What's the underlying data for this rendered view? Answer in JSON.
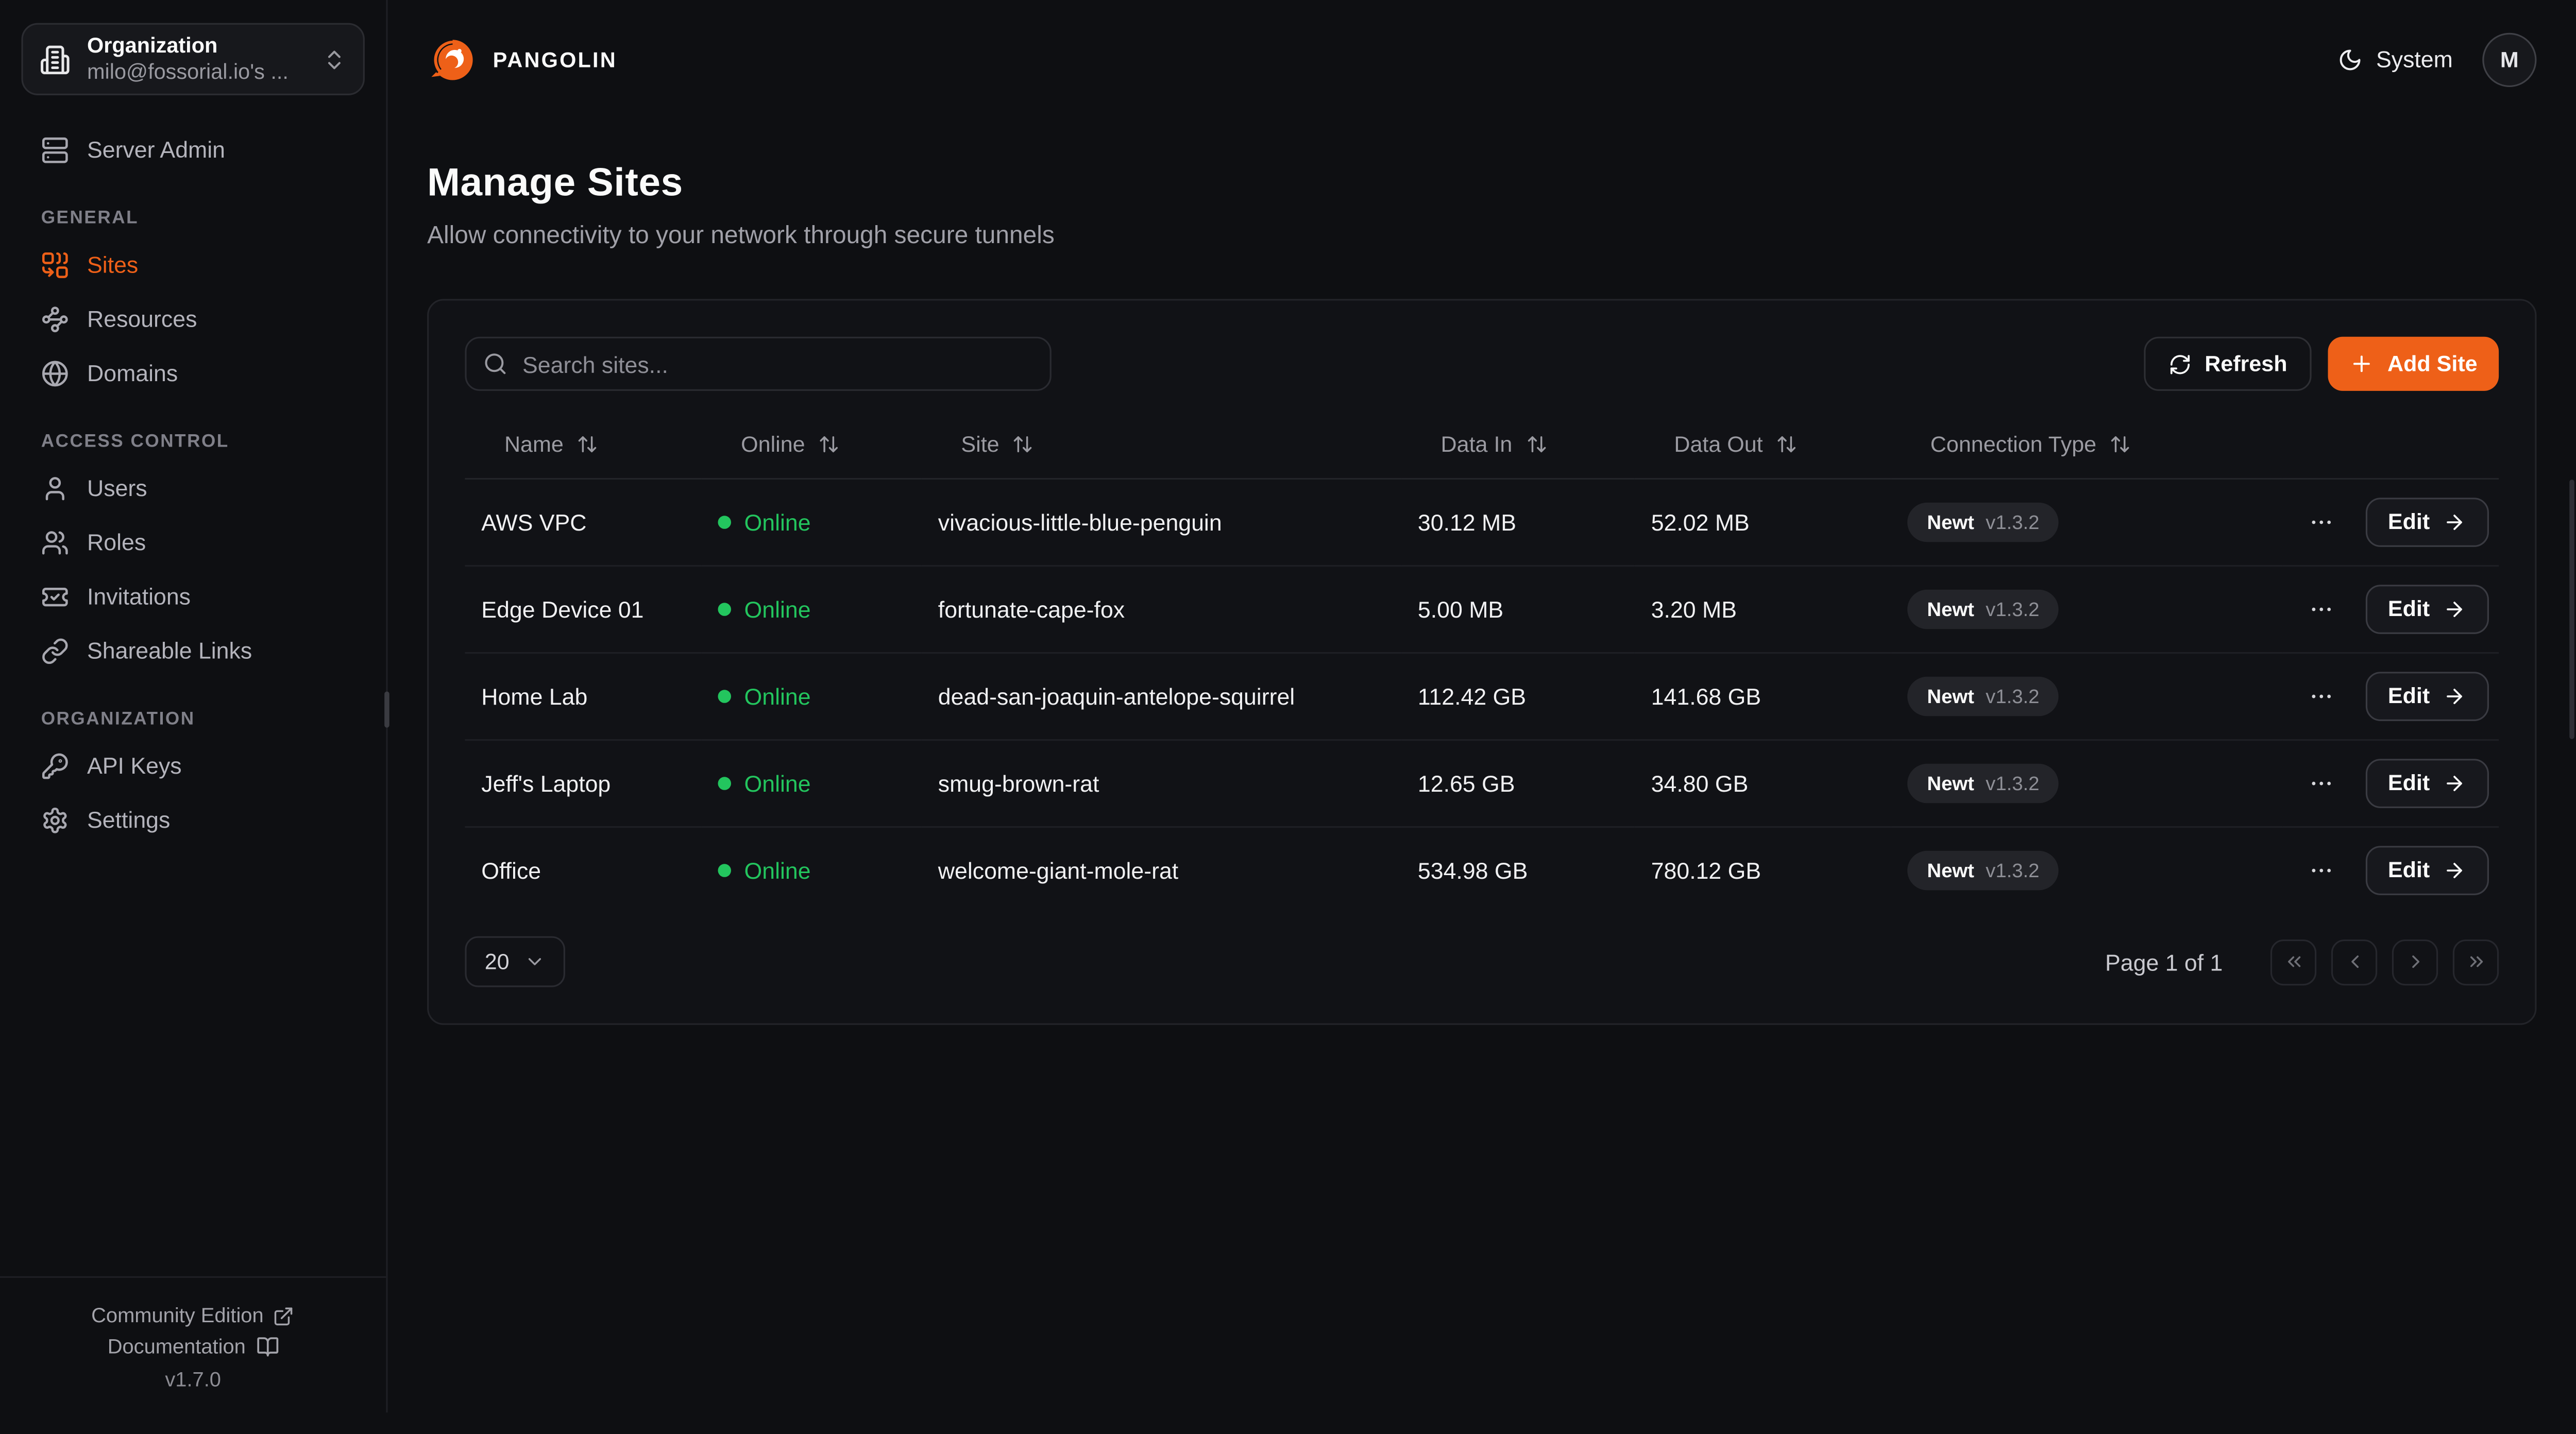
{
  "brand": {
    "name": "PANGOLIN"
  },
  "org_picker": {
    "title": "Organization",
    "value": "milo@fossorial.io's ..."
  },
  "sidebar": {
    "top_items": [
      {
        "label": "Server Admin",
        "icon": "server-icon",
        "active": false
      }
    ],
    "sections": [
      {
        "label": "GENERAL",
        "items": [
          {
            "label": "Sites",
            "icon": "combine-icon",
            "active": true
          },
          {
            "label": "Resources",
            "icon": "waypoints-icon",
            "active": false
          },
          {
            "label": "Domains",
            "icon": "globe-icon",
            "active": false
          }
        ]
      },
      {
        "label": "ACCESS CONTROL",
        "items": [
          {
            "label": "Users",
            "icon": "user-icon",
            "active": false
          },
          {
            "label": "Roles",
            "icon": "users-icon",
            "active": false
          },
          {
            "label": "Invitations",
            "icon": "ticket-check-icon",
            "active": false
          },
          {
            "label": "Shareable Links",
            "icon": "link-icon",
            "active": false
          }
        ]
      },
      {
        "label": "ORGANIZATION",
        "items": [
          {
            "label": "API Keys",
            "icon": "key-icon",
            "active": false
          },
          {
            "label": "Settings",
            "icon": "gear-icon",
            "active": false
          }
        ]
      }
    ],
    "footer": {
      "community_label": "Community Edition",
      "docs_label": "Documentation",
      "version": "v1.7.0"
    }
  },
  "topbar": {
    "theme_label": "System",
    "avatar_initial": "M"
  },
  "page": {
    "title": "Manage Sites",
    "subtitle": "Allow connectivity to your network through secure tunnels"
  },
  "toolbar": {
    "search_placeholder": "Search sites...",
    "refresh_label": "Refresh",
    "add_site_label": "Add Site"
  },
  "table": {
    "columns": [
      {
        "label": "Name"
      },
      {
        "label": "Online"
      },
      {
        "label": "Site"
      },
      {
        "label": "Data In"
      },
      {
        "label": "Data Out"
      },
      {
        "label": "Connection Type"
      }
    ],
    "edit_label": "Edit",
    "rows": [
      {
        "name": "AWS VPC",
        "status": "Online",
        "site": "vivacious-little-blue-penguin",
        "data_in": "30.12 MB",
        "data_out": "52.02 MB",
        "connection": "Newt",
        "version": "v1.3.2"
      },
      {
        "name": "Edge Device 01",
        "status": "Online",
        "site": "fortunate-cape-fox",
        "data_in": "5.00 MB",
        "data_out": "3.20 MB",
        "connection": "Newt",
        "version": "v1.3.2"
      },
      {
        "name": "Home Lab",
        "status": "Online",
        "site": "dead-san-joaquin-antelope-squirrel",
        "data_in": "112.42 GB",
        "data_out": "141.68 GB",
        "connection": "Newt",
        "version": "v1.3.2"
      },
      {
        "name": "Jeff's Laptop",
        "status": "Online",
        "site": "smug-brown-rat",
        "data_in": "12.65 GB",
        "data_out": "34.80 GB",
        "connection": "Newt",
        "version": "v1.3.2"
      },
      {
        "name": "Office",
        "status": "Online",
        "site": "welcome-giant-mole-rat",
        "data_in": "534.98 GB",
        "data_out": "780.12 GB",
        "connection": "Newt",
        "version": "v1.3.2"
      }
    ]
  },
  "pagination": {
    "page_size": "20",
    "page_label": "Page 1 of 1"
  },
  "colors": {
    "accent": "#ee6018",
    "online": "#23c55e"
  }
}
